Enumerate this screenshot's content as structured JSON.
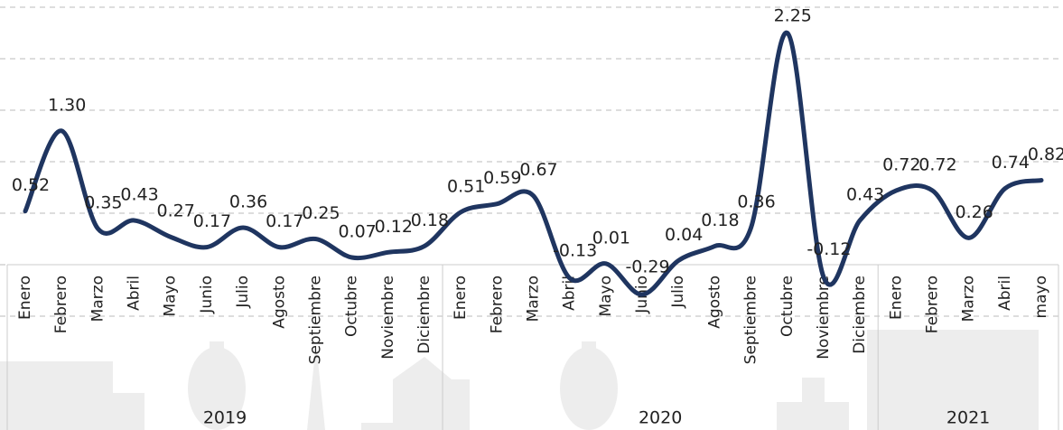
{
  "chart_data": {
    "type": "line",
    "categories": [
      "Enero",
      "Febrero",
      "Marzo",
      "Abril",
      "Mayo",
      "Junio",
      "Julio",
      "Agosto",
      "Septiembre",
      "Octubre",
      "Noviembre",
      "Diciembre",
      "Enero",
      "Febrero",
      "Marzo",
      "Abril",
      "Mayo",
      "Junio",
      "Julio",
      "Agosto",
      "Septiembre",
      "Octubre",
      "Noviembre",
      "Diciembre",
      "Enero",
      "Febrero",
      "Marzo",
      "Abril",
      "mayo"
    ],
    "groups": [
      {
        "label": "2019",
        "count": 12
      },
      {
        "label": "2020",
        "count": 12
      },
      {
        "label": "2021",
        "count": 5
      }
    ],
    "values": [
      0.52,
      1.3,
      0.35,
      0.43,
      0.27,
      0.17,
      0.36,
      0.17,
      0.25,
      0.07,
      0.12,
      0.18,
      0.51,
      0.59,
      0.67,
      -0.13,
      0.01,
      -0.29,
      0.04,
      0.18,
      0.36,
      2.25,
      -0.12,
      0.43,
      0.72,
      0.72,
      0.26,
      0.74,
      0.82
    ],
    "value_labels": [
      "0.52",
      "1.30",
      "0.35",
      "0.43",
      "0.27",
      "0.17",
      "0.36",
      "0.17",
      "0.25",
      "0.07",
      "0.12",
      "0.18",
      "0.51",
      "0.59",
      "0.67",
      "-0.13",
      "0.01",
      "-0.29",
      "0.04",
      "0.18",
      "0.36",
      "2.25",
      "-0.12",
      "0.43",
      "0.72",
      "0.72",
      "0.26",
      "0.74",
      "0.82"
    ],
    "color": "#1f3560",
    "ylim": [
      -0.5,
      2.5
    ],
    "yticks": [
      -0.5,
      0,
      0.5,
      1,
      1.5,
      2,
      2.5
    ],
    "grid": true
  }
}
